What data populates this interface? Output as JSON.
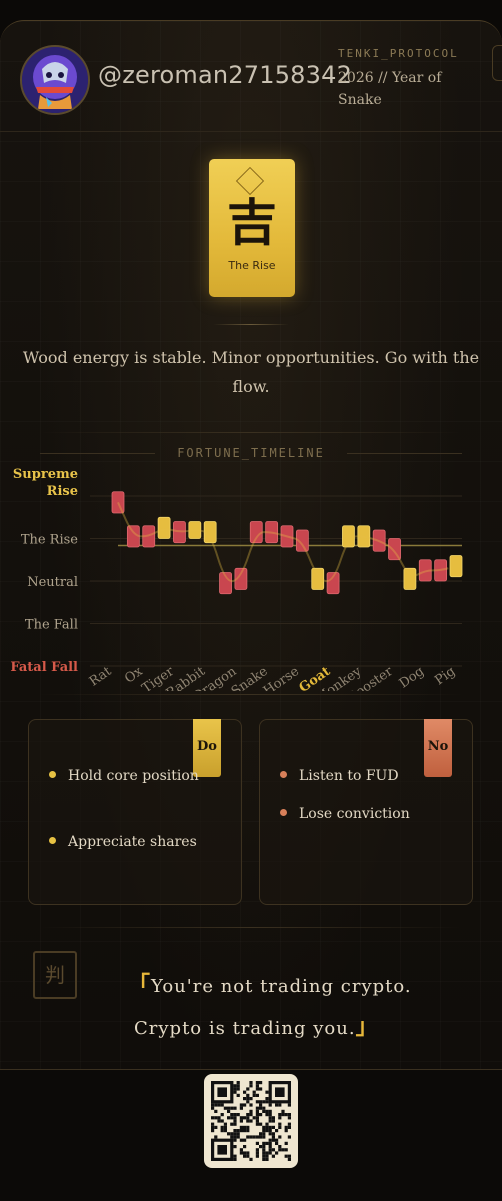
{
  "header": {
    "username": "@zeroman27158342",
    "protocol": "TENKI_PROTOCOL",
    "year_line": "2026 // Year of Snake"
  },
  "talisman": {
    "glyph": "吉",
    "label": "The Rise",
    "color": "#e6bd3f"
  },
  "description": "Wood energy is stable. Minor opportunities. Go with the flow.",
  "chart_data": {
    "type": "candlestick",
    "title": "FORTUNE_TIMELINE",
    "levels": [
      "Supreme Rise",
      "The Rise",
      "Neutral",
      "The Fall",
      "Fatal Fall"
    ],
    "level_colors": [
      "#e8c34a",
      "#b0a48e",
      "#b0a48e",
      "#b0a48e",
      "#d65a4a"
    ],
    "categories": [
      "Rat",
      "Ox",
      "Tiger",
      "Rabbit",
      "Dragon",
      "Snake",
      "Horse",
      "Goat",
      "Monkey",
      "Rooster",
      "Dog",
      "Pig"
    ],
    "highlight": "Goat",
    "candles": [
      {
        "open": 3.6,
        "close": 4.1,
        "color": "red"
      },
      {
        "open": 2.8,
        "close": 3.3,
        "color": "red"
      },
      {
        "open": 2.8,
        "close": 3.3,
        "color": "red"
      },
      {
        "open": 3.0,
        "close": 3.5,
        "color": "gold"
      },
      {
        "open": 2.9,
        "close": 3.4,
        "color": "red"
      },
      {
        "open": 3.0,
        "close": 3.4,
        "color": "gold"
      },
      {
        "open": 2.9,
        "close": 3.4,
        "color": "gold"
      },
      {
        "open": 1.7,
        "close": 2.2,
        "color": "red"
      },
      {
        "open": 1.8,
        "close": 2.3,
        "color": "red"
      },
      {
        "open": 2.9,
        "close": 3.4,
        "color": "red"
      },
      {
        "open": 2.9,
        "close": 3.4,
        "color": "red"
      },
      {
        "open": 2.8,
        "close": 3.3,
        "color": "red"
      },
      {
        "open": 2.7,
        "close": 3.2,
        "color": "red"
      },
      {
        "open": 1.8,
        "close": 2.3,
        "color": "gold"
      },
      {
        "open": 1.7,
        "close": 2.2,
        "color": "red"
      },
      {
        "open": 2.8,
        "close": 3.3,
        "color": "gold"
      },
      {
        "open": 2.8,
        "close": 3.3,
        "color": "gold"
      },
      {
        "open": 2.7,
        "close": 3.2,
        "color": "red"
      },
      {
        "open": 2.5,
        "close": 3.0,
        "color": "red"
      },
      {
        "open": 1.8,
        "close": 2.3,
        "color": "gold"
      },
      {
        "open": 2.0,
        "close": 2.5,
        "color": "red"
      },
      {
        "open": 2.0,
        "close": 2.5,
        "color": "red"
      },
      {
        "open": 2.1,
        "close": 2.6,
        "color": "gold"
      }
    ],
    "baseline": 3.0
  },
  "do": {
    "tag": "Do",
    "items": [
      "Hold core position",
      "Appreciate shares"
    ]
  },
  "no": {
    "tag": "No",
    "items": [
      "Listen to FUD",
      "Lose conviction"
    ]
  },
  "verdict": {
    "icon_glyph": "判",
    "open_bracket": "「",
    "line1": "You're not trading crypto.",
    "line2": "Crypto is trading you.",
    "close_bracket": "」"
  }
}
